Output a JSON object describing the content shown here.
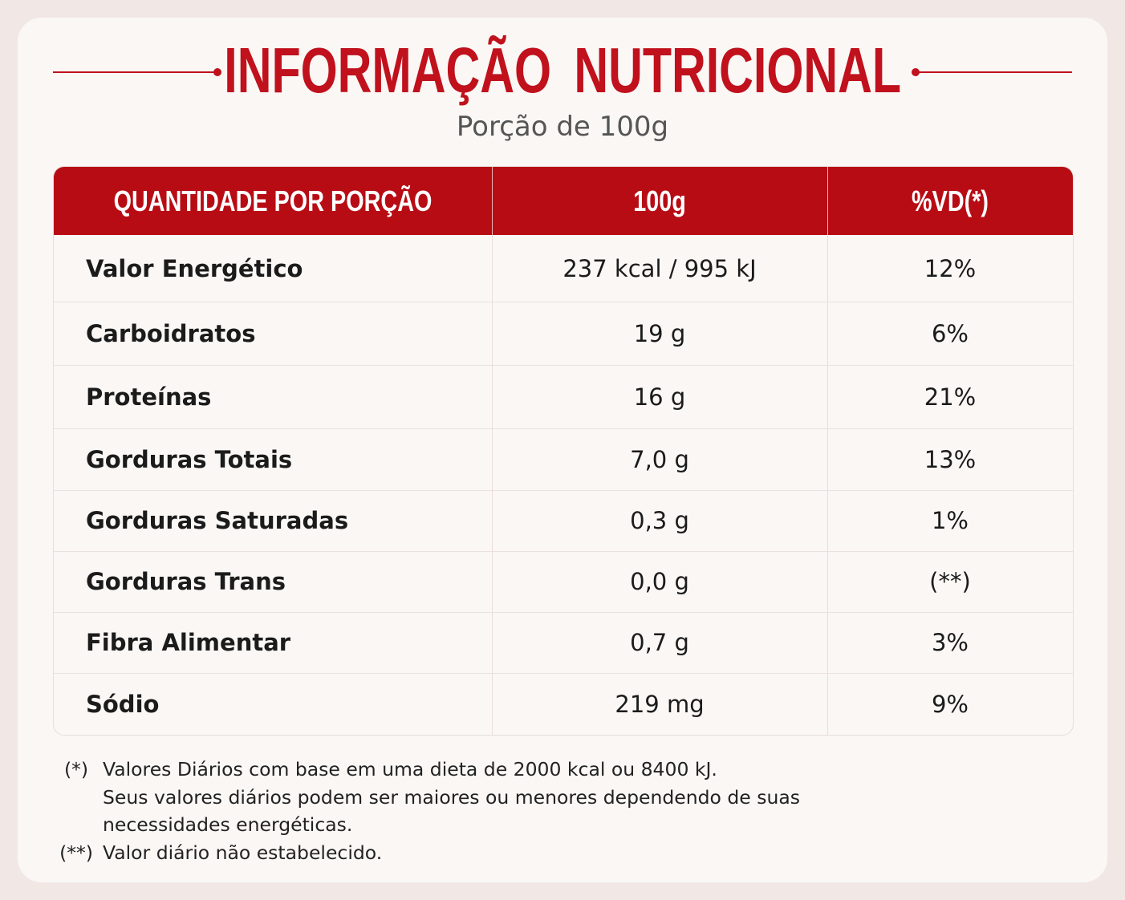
{
  "header": {
    "title": "INFORMAÇÃO NUTRICIONAL",
    "subtitle": "Porção de 100g"
  },
  "table": {
    "columns": [
      "QUANTIDADE POR PORÇÃO",
      "100g",
      "%VD(*)"
    ],
    "rows": [
      [
        "Valor Energético",
        "237 kcal / 995 kJ",
        "12%"
      ],
      [
        "Carboidratos",
        "19 g",
        "6%"
      ],
      [
        "Proteínas",
        "16 g",
        "21%"
      ],
      [
        "Gorduras Totais",
        "7,0 g",
        "13%"
      ],
      [
        "Gorduras Saturadas",
        "0,3 g",
        "1%"
      ],
      [
        "Gorduras Trans",
        "0,0 g",
        "(**)"
      ],
      [
        "Fibra Alimentar",
        "0,7 g",
        "3%"
      ],
      [
        "Sódio",
        "219 mg",
        "9%"
      ]
    ]
  },
  "footnotes": [
    {
      "marker": "(*)",
      "lines": [
        "Valores Diários com base em uma dieta de 2000 kcal ou 8400 kJ.",
        "Seus valores diários podem ser maiores ou menores dependendo de suas",
        "necessidades energéticas."
      ]
    },
    {
      "marker": "(**)",
      "lines": [
        "Valor diário não estabelecido."
      ]
    }
  ]
}
